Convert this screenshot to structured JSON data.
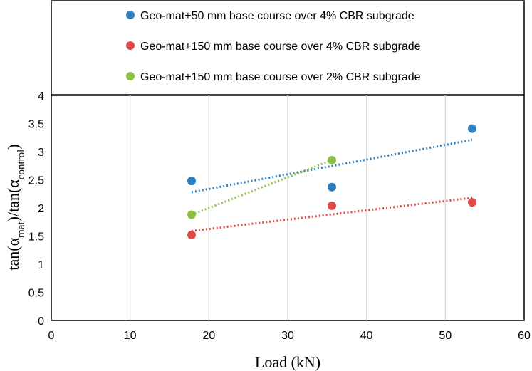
{
  "chart_data": {
    "type": "scatter",
    "title": "",
    "xlabel": "Load (kN)",
    "ylabel": {
      "base": "tan(α",
      "sub1": "mat",
      "mid": ")/tan(α",
      "sub2": "control",
      "end": ")"
    },
    "xlim": [
      0,
      60
    ],
    "ylim": [
      0,
      4
    ],
    "xticks": [
      0,
      10,
      20,
      30,
      40,
      50,
      60
    ],
    "yticks": [
      0,
      0.5,
      1,
      1.5,
      2,
      2.5,
      3,
      3.5,
      4
    ],
    "grid": true,
    "legend_position": "top",
    "series": [
      {
        "name": "Geo-mat+50 mm base course over 4% CBR subgrade",
        "color": "#2E7FC0",
        "x": [
          17.8,
          35.6,
          53.4
        ],
        "y": [
          2.48,
          2.37,
          3.41
        ],
        "trend": {
          "x": [
            17.8,
            53.4
          ],
          "y": [
            2.28,
            3.21
          ]
        }
      },
      {
        "name": "Geo-mat+150 mm base course over 4% CBR subgrade",
        "color": "#E04848",
        "x": [
          17.8,
          35.6,
          53.4
        ],
        "y": [
          1.52,
          2.04,
          2.1
        ],
        "trend": {
          "x": [
            17.8,
            53.4
          ],
          "y": [
            1.59,
            2.18
          ]
        }
      },
      {
        "name": "Geo-mat+150 mm base course over 2% CBR subgrade",
        "color": "#8CC043",
        "x": [
          17.8,
          35.6
        ],
        "y": [
          1.88,
          2.85
        ],
        "trend": {
          "x": [
            17.8,
            35.6
          ],
          "y": [
            1.88,
            2.85
          ]
        }
      }
    ]
  }
}
